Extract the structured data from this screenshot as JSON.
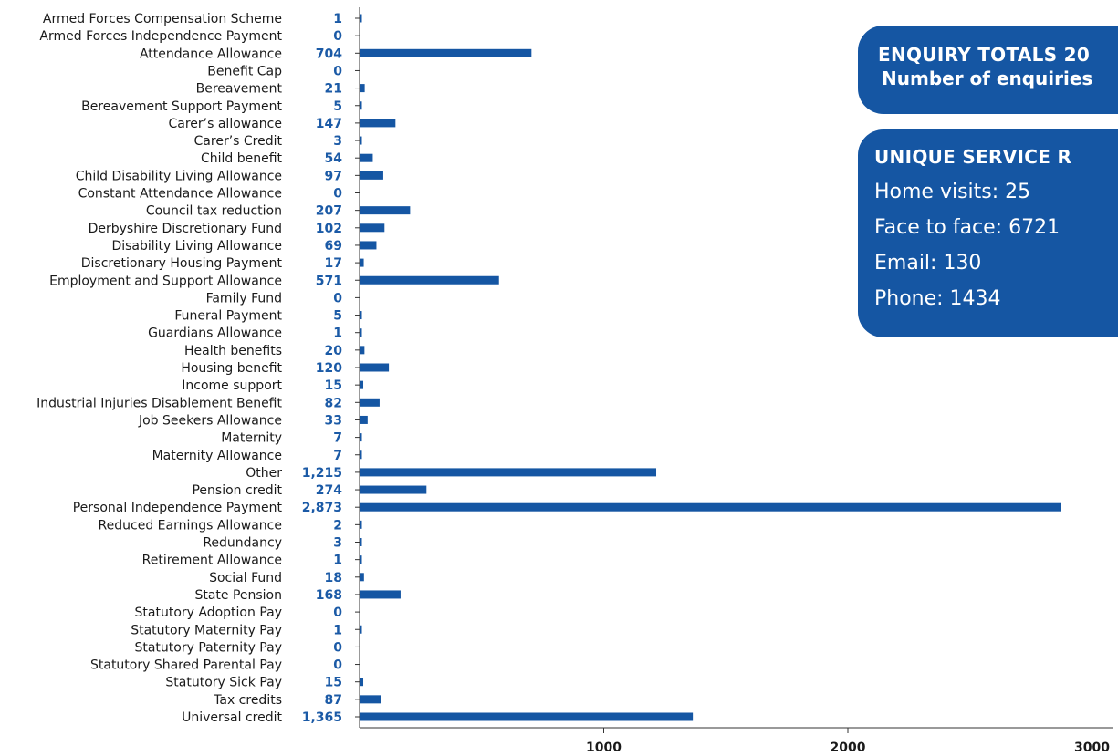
{
  "colors": {
    "bar": "#1556a3",
    "box": "#1556a3",
    "value_label": "#1b5aa6"
  },
  "chart_data": {
    "type": "bar",
    "orientation": "horizontal",
    "categories": [
      "Armed Forces Compensation Scheme",
      "Armed Forces Independence Payment",
      "Attendance Allowance",
      "Benefit Cap",
      "Bereavement",
      "Bereavement Support Payment",
      "Carer’s allowance",
      "Carer’s Credit",
      "Child benefit",
      "Child Disability Living Allowance",
      "Constant Attendance Allowance",
      "Council tax reduction",
      "Derbyshire Discretionary Fund",
      "Disability Living Allowance",
      "Discretionary Housing Payment",
      "Employment and Support Allowance",
      "Family Fund",
      "Funeral Payment",
      "Guardians Allowance",
      "Health benefits",
      "Housing benefit",
      "Income support",
      "Industrial Injuries Disablement Benefit",
      "Job Seekers Allowance",
      "Maternity",
      "Maternity Allowance",
      "Other",
      "Pension credit",
      "Personal Independence Payment",
      "Reduced Earnings Allowance",
      "Redundancy",
      "Retirement Allowance",
      "Social Fund",
      "State Pension",
      "Statutory Adoption Pay",
      "Statutory Maternity Pay",
      "Statutory Paternity Pay",
      "Statutory Shared Parental Pay",
      "Statutory Sick Pay",
      "Tax credits",
      "Universal credit"
    ],
    "values": [
      1,
      0,
      704,
      0,
      21,
      5,
      147,
      3,
      54,
      97,
      0,
      207,
      102,
      69,
      17,
      571,
      0,
      5,
      1,
      20,
      120,
      15,
      82,
      33,
      7,
      7,
      1215,
      274,
      2873,
      2,
      3,
      1,
      18,
      168,
      0,
      1,
      0,
      0,
      15,
      87,
      1365
    ],
    "value_labels": [
      "1",
      "0",
      "704",
      "0",
      "21",
      "5",
      "147",
      "3",
      "54",
      "97",
      "0",
      "207",
      "102",
      "69",
      "17",
      "571",
      "0",
      "5",
      "1",
      "20",
      "120",
      "15",
      "82",
      "33",
      "7",
      "7",
      "1,215",
      "274",
      "2,873",
      "2",
      "3",
      "1",
      "18",
      "168",
      "0",
      "1",
      "0",
      "0",
      "15",
      "87",
      "1,365"
    ],
    "xlim": [
      0,
      3000
    ],
    "xticks": [
      1000,
      2000,
      3000
    ],
    "xtick_labels": [
      "1000",
      "2000",
      "3000"
    ],
    "grid": false,
    "title": "",
    "xlabel": "",
    "ylabel": ""
  },
  "enquiry_box": {
    "title": "ENQUIRY TOTALS 20",
    "subtitle": "Number of enquiries"
  },
  "services_box": {
    "title": "UNIQUE SERVICE R",
    "items": [
      "Home visits: 25",
      "Face to face: 6721",
      "Email: 130",
      "Phone: 1434"
    ]
  }
}
